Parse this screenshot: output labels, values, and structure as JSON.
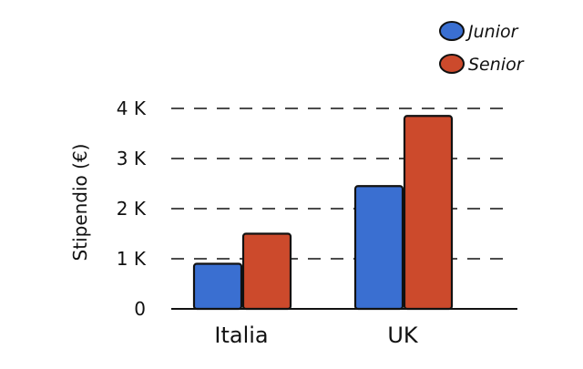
{
  "chart_data": {
    "type": "bar",
    "ylabel": "Stipendio (€)",
    "categories": [
      "Italia",
      "UK"
    ],
    "series": [
      {
        "name": "Junior",
        "color": "#3a6fd1",
        "values": [
          900,
          2450
        ]
      },
      {
        "name": "Senior",
        "color": "#cc4a2c",
        "values": [
          1500,
          3850
        ]
      }
    ],
    "y_ticks": [
      {
        "value": 0,
        "label": "0"
      },
      {
        "value": 1000,
        "label": "1 K"
      },
      {
        "value": 2000,
        "label": "2 K"
      },
      {
        "value": 3000,
        "label": "3 K"
      },
      {
        "value": 4000,
        "label": "4 K"
      }
    ],
    "ylim": [
      0,
      4000
    ],
    "grid": true,
    "legend_position": "top-right"
  }
}
